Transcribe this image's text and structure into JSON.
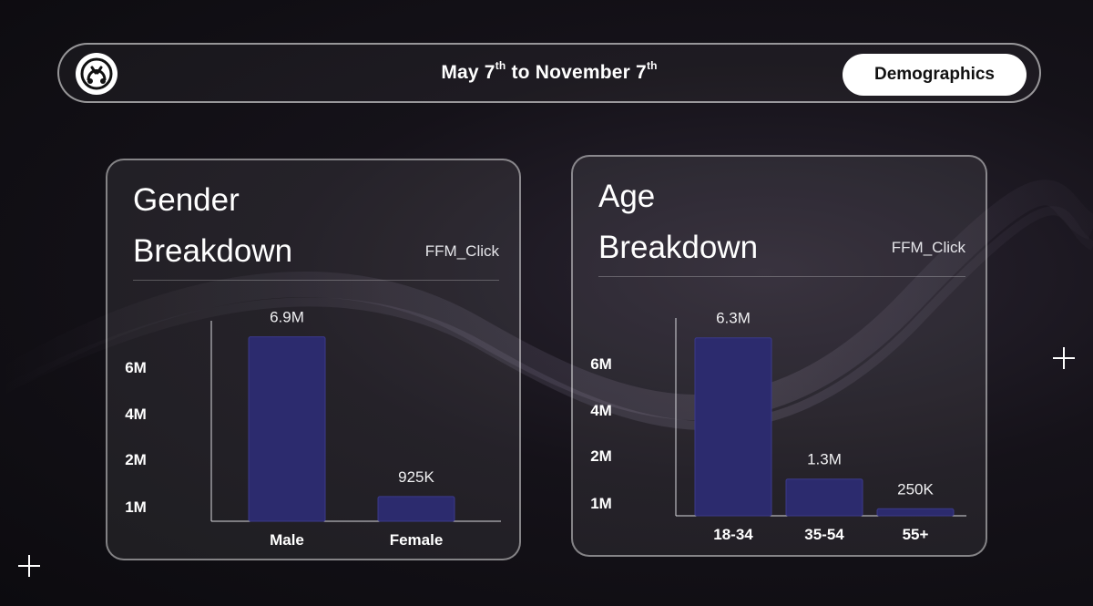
{
  "header": {
    "date_from": "May 7",
    "date_from_suffix": "th",
    "date_sep": " to ",
    "date_to": "November 7",
    "date_to_suffix": "th",
    "demographics_label": "Demographics"
  },
  "icons": {
    "logo": "brand-logo-icon",
    "plus": "plus-icon"
  },
  "colors": {
    "bar": "#2c2b6e",
    "bar_edge": "#3b3a8a",
    "axis": "#d9d9de"
  },
  "chart_data": [
    {
      "type": "bar",
      "title_line1": "Gender",
      "title_line2": "Breakdown",
      "source": "FFM_Click",
      "categories": [
        "Male",
        "Female"
      ],
      "values": [
        6900000,
        925000
      ],
      "value_labels": [
        "6.9M",
        "925K"
      ],
      "y_tick_labels": [
        "6M",
        "4M",
        "2M",
        "1M"
      ],
      "ylim": [
        0,
        7500000
      ]
    },
    {
      "type": "bar",
      "title_line1": "Age",
      "title_line2": "Breakdown",
      "source": "FFM_Click",
      "categories": [
        "18-34",
        "35-54",
        "55+"
      ],
      "values": [
        6300000,
        1300000,
        250000
      ],
      "value_labels": [
        "6.3M",
        "1.3M",
        "250K"
      ],
      "y_tick_labels": [
        "6M",
        "4M",
        "2M",
        "1M"
      ],
      "ylim": [
        0,
        7000000
      ]
    }
  ]
}
